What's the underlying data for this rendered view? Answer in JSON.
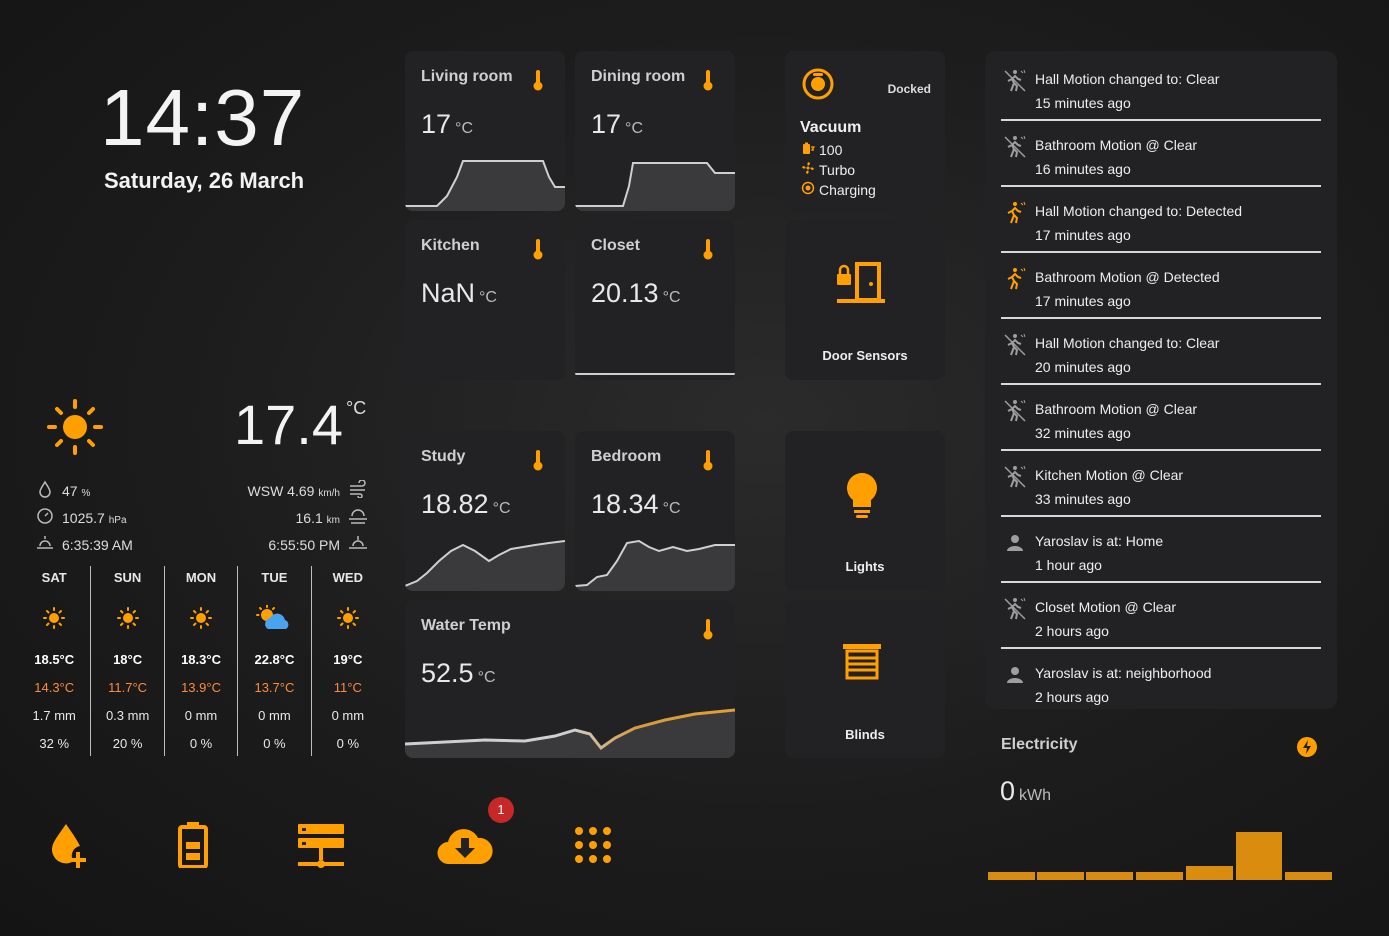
{
  "clock": {
    "time": "14:37",
    "date": "Saturday, 26 March"
  },
  "weather": {
    "icon": "sun-icon",
    "temperature": "17.4",
    "unit": "°C",
    "humidity": "47",
    "humidity_unit": "%",
    "pressure": "1025.7",
    "pressure_unit": "hPa",
    "sunrise": "6:35:39 AM",
    "wind": "WSW 4.69",
    "wind_unit": "km/h",
    "visibility": "16.1",
    "visibility_unit": "km",
    "sunset": "6:55:50 PM",
    "forecast": [
      {
        "day": "SAT",
        "icon": "sun-icon",
        "high": "18.5°C",
        "low": "14.3°C",
        "precip": "1.7 mm",
        "chance": "32 %"
      },
      {
        "day": "SUN",
        "icon": "sun-icon",
        "high": "18°C",
        "low": "11.7°C",
        "precip": "0.3 mm",
        "chance": "20 %"
      },
      {
        "day": "MON",
        "icon": "sun-icon",
        "high": "18.3°C",
        "low": "13.9°C",
        "precip": "0 mm",
        "chance": "0 %"
      },
      {
        "day": "TUE",
        "icon": "partly-cloudy-icon",
        "high": "22.8°C",
        "low": "13.7°C",
        "precip": "0 mm",
        "chance": "0 %"
      },
      {
        "day": "WED",
        "icon": "sun-icon",
        "high": "19°C",
        "low": "11°C",
        "precip": "0 mm",
        "chance": "0 %"
      }
    ]
  },
  "sensors": {
    "living_room": {
      "name": "Living room",
      "value": "17",
      "unit": "°C"
    },
    "dining_room": {
      "name": "Dining room",
      "value": "17",
      "unit": "°C"
    },
    "kitchen": {
      "name": "Kitchen",
      "value": "NaN",
      "unit": "°C"
    },
    "closet": {
      "name": "Closet",
      "value": "20.13",
      "unit": "°C"
    },
    "study": {
      "name": "Study",
      "value": "18.82",
      "unit": "°C"
    },
    "bedroom": {
      "name": "Bedroom",
      "value": "18.34",
      "unit": "°C"
    },
    "water": {
      "name": "Water Temp",
      "value": "52.5",
      "unit": "°C"
    }
  },
  "vacuum": {
    "status": "Docked",
    "name": "Vacuum",
    "battery": "100",
    "fan": "Turbo",
    "state": "Charging"
  },
  "tiles": {
    "door": "Door Sensors",
    "lights": "Lights",
    "blinds": "Blinds"
  },
  "logbook": [
    {
      "icon": "motion-off-icon",
      "text": "Hall Motion changed to: Clear",
      "time": "15 minutes ago"
    },
    {
      "icon": "motion-off-icon",
      "text": "Bathroom Motion @ Clear",
      "time": "16 minutes ago"
    },
    {
      "icon": "motion-on-icon",
      "text": "Hall Motion changed to: Detected",
      "time": "17 minutes ago"
    },
    {
      "icon": "motion-on-icon",
      "text": "Bathroom Motion @ Detected",
      "time": "17 minutes ago"
    },
    {
      "icon": "motion-off-icon",
      "text": "Hall Motion changed to: Clear",
      "time": "20 minutes ago"
    },
    {
      "icon": "motion-off-icon",
      "text": "Bathroom Motion @ Clear",
      "time": "32 minutes ago"
    },
    {
      "icon": "motion-off-icon",
      "text": "Kitchen Motion @ Clear",
      "time": "33 minutes ago"
    },
    {
      "icon": "person-icon",
      "text": "Yaroslav is at: Home",
      "time": "1 hour ago"
    },
    {
      "icon": "motion-off-icon",
      "text": "Closet Motion @ Clear",
      "time": "2 hours ago"
    },
    {
      "icon": "person-icon",
      "text": "Yaroslav is at: neighborhood",
      "time": "2 hours ago"
    }
  ],
  "electricity": {
    "name": "Electricity",
    "value": "0",
    "unit": "kWh"
  },
  "notifications": {
    "count": "1"
  },
  "colors": {
    "accent": "#ffa000",
    "card": "#222224",
    "low_temp": "#ff8a3d"
  }
}
